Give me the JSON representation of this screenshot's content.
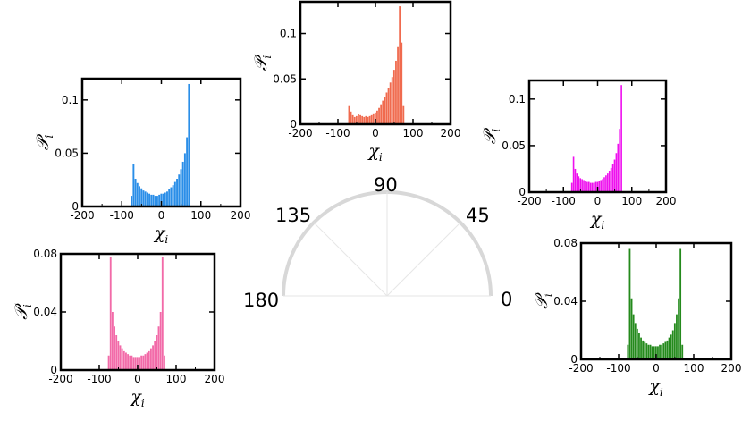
{
  "dial": {
    "angle_labels": [
      "0",
      "45",
      "90",
      "135",
      "180"
    ],
    "arc_color": "#d8d8d8",
    "spoke_color": "#e6e6e6"
  },
  "chart_data": [
    {
      "type": "bar",
      "panel": "90",
      "color": "#f06a4e",
      "xlabel": "χ_i",
      "ylabel": "𝒫_i",
      "xlim": [
        -200,
        200
      ],
      "ylim": [
        0,
        0.135
      ],
      "xticks": [
        "-200",
        "-100",
        "0",
        "100",
        "200"
      ],
      "yticks": [
        "0",
        "0.05",
        "0.1"
      ],
      "ytick_values": [
        0,
        0.05,
        0.1
      ],
      "x": [
        -70,
        -65,
        -60,
        -55,
        -50,
        -45,
        -40,
        -35,
        -30,
        -25,
        -20,
        -15,
        -10,
        -5,
        0,
        5,
        10,
        15,
        20,
        25,
        30,
        35,
        40,
        45,
        50,
        55,
        60,
        65,
        70,
        75
      ],
      "values": [
        0.02,
        0.014,
        0.01,
        0.008,
        0.009,
        0.011,
        0.01,
        0.009,
        0.008,
        0.009,
        0.008,
        0.009,
        0.01,
        0.012,
        0.013,
        0.015,
        0.018,
        0.022,
        0.026,
        0.03,
        0.035,
        0.04,
        0.046,
        0.052,
        0.06,
        0.07,
        0.085,
        0.13,
        0.09,
        0.02
      ]
    },
    {
      "type": "bar",
      "panel": "135",
      "color": "#2a8ee8",
      "xlabel": "χ_i",
      "ylabel": "𝒫_i",
      "xlim": [
        -200,
        200
      ],
      "ylim": [
        0,
        0.12
      ],
      "xticks": [
        "-200",
        "-100",
        "0",
        "100",
        "200"
      ],
      "yticks": [
        "0",
        "0.05",
        "0.1"
      ],
      "ytick_values": [
        0,
        0.05,
        0.1
      ],
      "x": [
        -75,
        -70,
        -65,
        -60,
        -55,
        -50,
        -45,
        -40,
        -35,
        -30,
        -25,
        -20,
        -15,
        -10,
        -5,
        0,
        5,
        10,
        15,
        20,
        25,
        30,
        35,
        40,
        45,
        50,
        55,
        60,
        65,
        70
      ],
      "values": [
        0.01,
        0.04,
        0.026,
        0.022,
        0.019,
        0.017,
        0.015,
        0.014,
        0.013,
        0.012,
        0.011,
        0.011,
        0.01,
        0.01,
        0.011,
        0.012,
        0.012,
        0.013,
        0.014,
        0.016,
        0.018,
        0.02,
        0.023,
        0.026,
        0.03,
        0.035,
        0.042,
        0.05,
        0.065,
        0.115
      ]
    },
    {
      "type": "bar",
      "panel": "45",
      "color": "#ee10ee",
      "xlabel": "χ_i",
      "ylabel": "𝒫_i",
      "xlim": [
        -200,
        200
      ],
      "ylim": [
        0,
        0.12
      ],
      "xticks": [
        "-200",
        "-100",
        "0",
        "100",
        "200"
      ],
      "yticks": [
        "0",
        "0.05",
        "0.1"
      ],
      "ytick_values": [
        0,
        0.05,
        0.1
      ],
      "x": [
        -75,
        -70,
        -65,
        -60,
        -55,
        -50,
        -45,
        -40,
        -35,
        -30,
        -25,
        -20,
        -15,
        -10,
        -5,
        0,
        5,
        10,
        15,
        20,
        25,
        30,
        35,
        40,
        45,
        50,
        55,
        60,
        65,
        70
      ],
      "values": [
        0.01,
        0.038,
        0.025,
        0.02,
        0.017,
        0.015,
        0.014,
        0.013,
        0.012,
        0.011,
        0.011,
        0.01,
        0.01,
        0.01,
        0.011,
        0.011,
        0.012,
        0.013,
        0.014,
        0.016,
        0.018,
        0.02,
        0.023,
        0.026,
        0.03,
        0.035,
        0.042,
        0.052,
        0.068,
        0.115
      ]
    },
    {
      "type": "bar",
      "panel": "180",
      "color": "#f26aa8",
      "xlabel": "χ_i",
      "ylabel": "𝒫_i",
      "xlim": [
        -200,
        200
      ],
      "ylim": [
        0,
        0.08
      ],
      "xticks": [
        "-200",
        "-100",
        "0",
        "100",
        "200"
      ],
      "yticks": [
        "0",
        "0.04",
        "0.08"
      ],
      "ytick_values": [
        0,
        0.04,
        0.08
      ],
      "x": [
        -75,
        -70,
        -65,
        -60,
        -55,
        -50,
        -45,
        -40,
        -35,
        -30,
        -25,
        -20,
        -15,
        -10,
        -5,
        0,
        5,
        10,
        15,
        20,
        25,
        30,
        35,
        40,
        45,
        50,
        55,
        60,
        65,
        70
      ],
      "values": [
        0.01,
        0.078,
        0.04,
        0.03,
        0.024,
        0.02,
        0.017,
        0.015,
        0.013,
        0.012,
        0.011,
        0.01,
        0.01,
        0.009,
        0.009,
        0.009,
        0.009,
        0.01,
        0.01,
        0.011,
        0.012,
        0.013,
        0.015,
        0.017,
        0.02,
        0.024,
        0.03,
        0.04,
        0.078,
        0.01
      ]
    },
    {
      "type": "bar",
      "panel": "0",
      "color": "#248a1c",
      "xlabel": "χ_i",
      "ylabel": "𝒫_i",
      "xlim": [
        -200,
        200
      ],
      "ylim": [
        0,
        0.08
      ],
      "xticks": [
        "-200",
        "-100",
        "0",
        "100",
        "200"
      ],
      "yticks": [
        "0",
        "0.04",
        "0.08"
      ],
      "ytick_values": [
        0,
        0.04,
        0.08
      ],
      "x": [
        -75,
        -70,
        -65,
        -60,
        -55,
        -50,
        -45,
        -40,
        -35,
        -30,
        -25,
        -20,
        -15,
        -10,
        -5,
        0,
        5,
        10,
        15,
        20,
        25,
        30,
        35,
        40,
        45,
        50,
        55,
        60,
        65,
        70
      ],
      "values": [
        0.01,
        0.076,
        0.042,
        0.031,
        0.025,
        0.021,
        0.018,
        0.015,
        0.013,
        0.012,
        0.011,
        0.01,
        0.01,
        0.009,
        0.009,
        0.009,
        0.009,
        0.01,
        0.01,
        0.011,
        0.012,
        0.013,
        0.015,
        0.017,
        0.02,
        0.025,
        0.031,
        0.042,
        0.076,
        0.01
      ]
    }
  ]
}
